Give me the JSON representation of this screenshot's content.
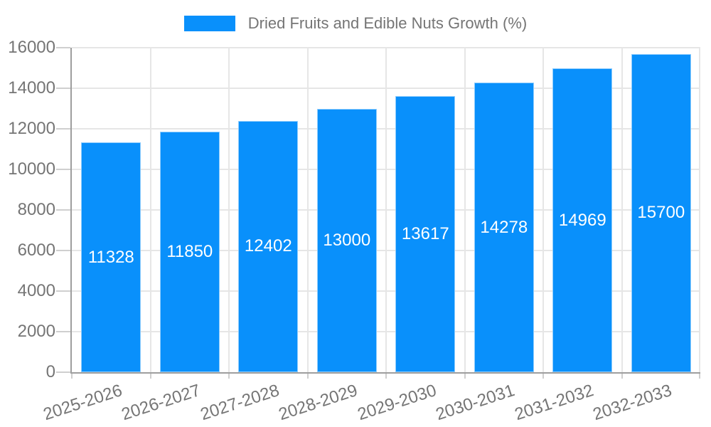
{
  "legend": {
    "label": "Dried Fruits and Edible Nuts Growth (%)"
  },
  "colors": {
    "bar": "#0990fb",
    "axis": "#9e9e9e",
    "grid": "#e6e6e6",
    "tick": "#cfcfcf",
    "axis_label": "#757575",
    "data_label": "#ffffff",
    "legend_text": "#757575",
    "background": "#ffffff"
  },
  "chart_data": {
    "type": "bar",
    "title": "Dried Fruits and Edible Nuts Growth (%)",
    "categories": [
      "2025-2026",
      "2026-2027",
      "2027-2028",
      "2028-2029",
      "2029-2030",
      "2030-2031",
      "2031-2032",
      "2032-2033"
    ],
    "values": [
      11328,
      11850,
      12402,
      13000,
      13617,
      14278,
      14969,
      15700
    ],
    "xlabel": "",
    "ylabel": "",
    "ylim": [
      0,
      16000
    ],
    "ytick_step": 2000,
    "ytick_labels": [
      "0",
      "2000",
      "4000",
      "6000",
      "8000",
      "10000",
      "12000",
      "14000",
      "16000"
    ],
    "grid": true,
    "legend_position": "top-center",
    "data_labels": "inside-center",
    "x_tick_label_rotation_deg": -18,
    "bar_fraction_of_slot": 0.76
  }
}
